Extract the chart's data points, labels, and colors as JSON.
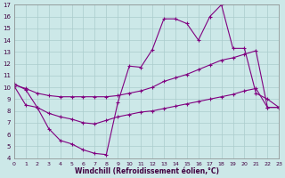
{
  "xlabel": "Windchill (Refroidissement éolien,°C)",
  "xlim": [
    0,
    23
  ],
  "ylim": [
    4,
    17
  ],
  "xticks": [
    0,
    1,
    2,
    3,
    4,
    5,
    6,
    7,
    8,
    9,
    10,
    11,
    12,
    13,
    14,
    15,
    16,
    17,
    18,
    19,
    20,
    21,
    22,
    23
  ],
  "yticks": [
    4,
    5,
    6,
    7,
    8,
    9,
    10,
    11,
    12,
    13,
    14,
    15,
    16,
    17
  ],
  "background_color": "#cce8e8",
  "grid_color": "#aacccc",
  "line_color": "#800080",
  "line1_x": [
    0,
    1,
    2,
    3,
    4,
    5,
    6,
    7,
    8,
    9,
    10,
    11,
    12,
    13,
    14,
    15,
    16,
    17,
    18,
    19,
    20,
    21,
    22,
    23
  ],
  "line1_y": [
    10.3,
    9.8,
    8.3,
    6.5,
    5.5,
    5.2,
    4.7,
    4.4,
    4.3,
    8.7,
    11.8,
    11.7,
    13.2,
    15.8,
    15.8,
    15.4,
    14.0,
    16.0,
    17.0,
    13.3,
    13.3,
    9.5,
    9.0,
    8.3
  ],
  "line2_x": [
    0,
    1,
    2,
    3,
    4,
    5,
    6,
    7,
    8,
    9,
    10,
    11,
    12,
    13,
    14,
    15,
    16,
    17,
    18,
    19,
    20,
    21,
    22,
    23
  ],
  "line2_y": [
    10.2,
    9.9,
    9.5,
    9.3,
    9.2,
    9.2,
    9.2,
    9.2,
    9.2,
    9.3,
    9.5,
    9.7,
    10.0,
    10.5,
    10.8,
    11.1,
    11.5,
    11.9,
    12.3,
    12.5,
    12.8,
    13.1,
    8.3,
    8.3
  ],
  "line3_x": [
    0,
    1,
    2,
    3,
    4,
    5,
    6,
    7,
    8,
    9,
    10,
    11,
    12,
    13,
    14,
    15,
    16,
    17,
    18,
    19,
    20,
    21,
    22,
    23
  ],
  "line3_y": [
    10.1,
    8.5,
    8.3,
    7.8,
    7.5,
    7.3,
    7.0,
    6.9,
    7.2,
    7.5,
    7.7,
    7.9,
    8.0,
    8.2,
    8.4,
    8.6,
    8.8,
    9.0,
    9.2,
    9.4,
    9.7,
    9.9,
    8.3,
    8.3
  ]
}
